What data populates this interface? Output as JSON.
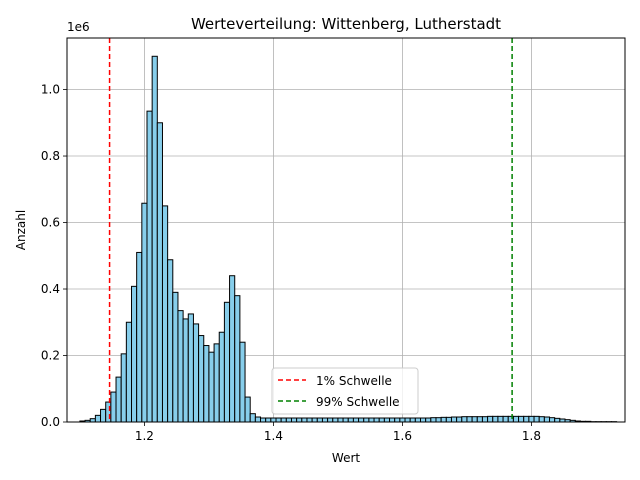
{
  "chart_data": {
    "type": "bar",
    "title": "Werteverteilung: Wittenberg, Lutherstadt",
    "xlabel": "Wert",
    "ylabel": "Anzahl",
    "y_offset_label": "1e6",
    "xlim": [
      1.08,
      1.945
    ],
    "ylim": [
      0,
      1.155
    ],
    "y_scale_note": "values in millions (1e6)",
    "x_ticks": [
      {
        "value": 1.2,
        "label": "1.2"
      },
      {
        "value": 1.4,
        "label": "1.4"
      },
      {
        "value": 1.6,
        "label": "1.6"
      },
      {
        "value": 1.8,
        "label": "1.8"
      }
    ],
    "y_ticks": [
      {
        "value": 0.0,
        "label": "0.0"
      },
      {
        "value": 0.2,
        "label": "0.2"
      },
      {
        "value": 0.4,
        "label": "0.4"
      },
      {
        "value": 0.6,
        "label": "0.6"
      },
      {
        "value": 0.8,
        "label": "0.8"
      },
      {
        "value": 1.0,
        "label": "1.0"
      }
    ],
    "grid": true,
    "bin_start": 1.1,
    "bin_width": 0.008,
    "bar_color": "#87ceeb",
    "bar_edge_color": "#000000",
    "counts": [
      0.003,
      0.005,
      0.01,
      0.02,
      0.038,
      0.06,
      0.09,
      0.135,
      0.205,
      0.3,
      0.408,
      0.51,
      0.658,
      0.935,
      1.1,
      0.9,
      0.65,
      0.488,
      0.39,
      0.335,
      0.31,
      0.325,
      0.295,
      0.26,
      0.23,
      0.21,
      0.235,
      0.27,
      0.36,
      0.44,
      0.38,
      0.24,
      0.075,
      0.025,
      0.015,
      0.012,
      0.012,
      0.012,
      0.012,
      0.012,
      0.012,
      0.012,
      0.012,
      0.012,
      0.012,
      0.012,
      0.012,
      0.012,
      0.012,
      0.012,
      0.012,
      0.012,
      0.012,
      0.012,
      0.012,
      0.012,
      0.012,
      0.012,
      0.012,
      0.012,
      0.012,
      0.012,
      0.012,
      0.012,
      0.012,
      0.012,
      0.012,
      0.012,
      0.013,
      0.013,
      0.014,
      0.014,
      0.015,
      0.015,
      0.016,
      0.016,
      0.016,
      0.016,
      0.016,
      0.017,
      0.017,
      0.017,
      0.017,
      0.017,
      0.017,
      0.017,
      0.017,
      0.017,
      0.017,
      0.016,
      0.015,
      0.013,
      0.011,
      0.009,
      0.007,
      0.005,
      0.003,
      0.002,
      0.002,
      0.001,
      0.001,
      0.001,
      0.001,
      0.001
    ],
    "thresholds": [
      {
        "name": "1% Schwelle",
        "value": 1.146,
        "color": "#ff0000"
      },
      {
        "name": "99% Schwelle",
        "value": 1.77,
        "color": "#008000"
      }
    ],
    "legend_position": "bottom-center"
  }
}
